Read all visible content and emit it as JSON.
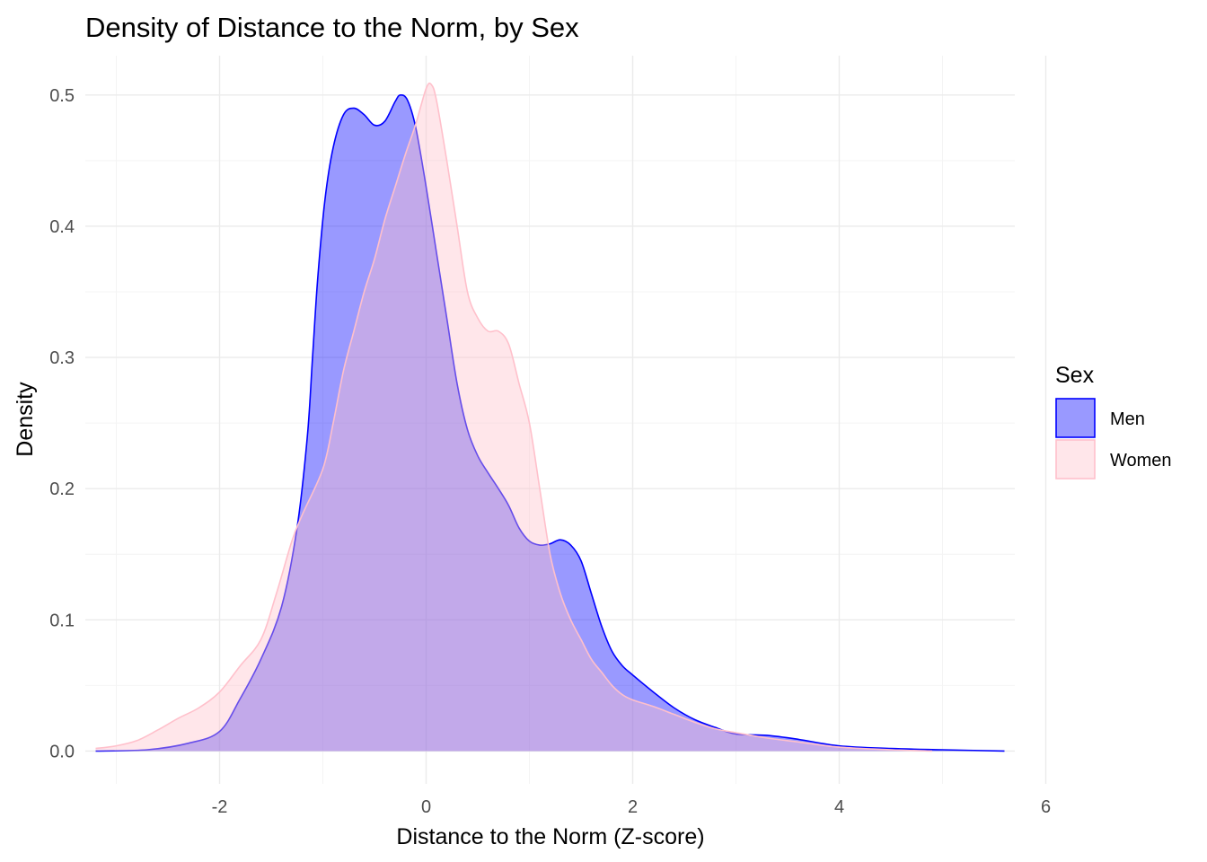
{
  "chart_data": {
    "type": "area",
    "title": "Density of Distance to the Norm, by Sex",
    "xlabel": "Distance to the Norm (Z-score)",
    "ylabel": "Density",
    "xlim": [
      -3.3,
      5.7
    ],
    "ylim": [
      -0.025,
      0.53
    ],
    "x_ticks": [
      -2,
      0,
      2,
      4,
      6
    ],
    "x_tick_labels": [
      "-2",
      "0",
      "2",
      "4",
      "6"
    ],
    "y_ticks": [
      0.0,
      0.1,
      0.2,
      0.3,
      0.4,
      0.5
    ],
    "y_tick_labels": [
      "0.0",
      "0.1",
      "0.2",
      "0.3",
      "0.4",
      "0.5"
    ],
    "grid": true,
    "legend": {
      "title": "Sex",
      "position": "right"
    },
    "series": [
      {
        "name": "Men",
        "line_color": "#0000ff",
        "fill_color": "#0000ff",
        "fill_opacity": 0.4,
        "points": [
          [
            -3.2,
            0.0
          ],
          [
            -2.7,
            0.001
          ],
          [
            -2.3,
            0.006
          ],
          [
            -2.0,
            0.015
          ],
          [
            -1.8,
            0.04
          ],
          [
            -1.6,
            0.07
          ],
          [
            -1.4,
            0.11
          ],
          [
            -1.25,
            0.17
          ],
          [
            -1.15,
            0.24
          ],
          [
            -1.1,
            0.3
          ],
          [
            -1.05,
            0.36
          ],
          [
            -0.98,
            0.42
          ],
          [
            -0.9,
            0.46
          ],
          [
            -0.8,
            0.485
          ],
          [
            -0.7,
            0.49
          ],
          [
            -0.6,
            0.485
          ],
          [
            -0.5,
            0.477
          ],
          [
            -0.4,
            0.48
          ],
          [
            -0.3,
            0.495
          ],
          [
            -0.25,
            0.5
          ],
          [
            -0.18,
            0.496
          ],
          [
            -0.1,
            0.475
          ],
          [
            0.0,
            0.43
          ],
          [
            0.1,
            0.38
          ],
          [
            0.2,
            0.33
          ],
          [
            0.3,
            0.28
          ],
          [
            0.4,
            0.245
          ],
          [
            0.5,
            0.225
          ],
          [
            0.6,
            0.212
          ],
          [
            0.7,
            0.2
          ],
          [
            0.8,
            0.187
          ],
          [
            0.9,
            0.17
          ],
          [
            1.0,
            0.16
          ],
          [
            1.1,
            0.157
          ],
          [
            1.2,
            0.158
          ],
          [
            1.3,
            0.161
          ],
          [
            1.4,
            0.157
          ],
          [
            1.5,
            0.145
          ],
          [
            1.6,
            0.12
          ],
          [
            1.7,
            0.095
          ],
          [
            1.8,
            0.076
          ],
          [
            1.9,
            0.065
          ],
          [
            2.0,
            0.058
          ],
          [
            2.2,
            0.045
          ],
          [
            2.4,
            0.033
          ],
          [
            2.6,
            0.024
          ],
          [
            2.8,
            0.018
          ],
          [
            3.0,
            0.013
          ],
          [
            3.3,
            0.012
          ],
          [
            3.6,
            0.009
          ],
          [
            4.0,
            0.004
          ],
          [
            4.5,
            0.002
          ],
          [
            5.0,
            0.001
          ],
          [
            5.6,
            0.0
          ]
        ]
      },
      {
        "name": "Women",
        "line_color": "#ffc0cb",
        "fill_color": "#ffc0cb",
        "fill_opacity": 0.4,
        "points": [
          [
            -3.2,
            0.002
          ],
          [
            -3.0,
            0.004
          ],
          [
            -2.8,
            0.008
          ],
          [
            -2.6,
            0.016
          ],
          [
            -2.4,
            0.025
          ],
          [
            -2.2,
            0.033
          ],
          [
            -2.0,
            0.045
          ],
          [
            -1.8,
            0.065
          ],
          [
            -1.6,
            0.085
          ],
          [
            -1.45,
            0.12
          ],
          [
            -1.3,
            0.16
          ],
          [
            -1.2,
            0.18
          ],
          [
            -1.0,
            0.215
          ],
          [
            -0.9,
            0.25
          ],
          [
            -0.8,
            0.29
          ],
          [
            -0.7,
            0.32
          ],
          [
            -0.6,
            0.35
          ],
          [
            -0.5,
            0.375
          ],
          [
            -0.4,
            0.405
          ],
          [
            -0.3,
            0.43
          ],
          [
            -0.2,
            0.455
          ],
          [
            -0.1,
            0.478
          ],
          [
            0.0,
            0.505
          ],
          [
            0.05,
            0.508
          ],
          [
            0.1,
            0.496
          ],
          [
            0.2,
            0.45
          ],
          [
            0.3,
            0.4
          ],
          [
            0.4,
            0.35
          ],
          [
            0.5,
            0.33
          ],
          [
            0.6,
            0.32
          ],
          [
            0.7,
            0.32
          ],
          [
            0.8,
            0.31
          ],
          [
            0.9,
            0.28
          ],
          [
            1.0,
            0.25
          ],
          [
            1.1,
            0.2
          ],
          [
            1.2,
            0.15
          ],
          [
            1.3,
            0.12
          ],
          [
            1.4,
            0.1
          ],
          [
            1.5,
            0.085
          ],
          [
            1.6,
            0.07
          ],
          [
            1.7,
            0.06
          ],
          [
            1.8,
            0.05
          ],
          [
            1.9,
            0.043
          ],
          [
            2.0,
            0.039
          ],
          [
            2.2,
            0.034
          ],
          [
            2.4,
            0.028
          ],
          [
            2.6,
            0.022
          ],
          [
            2.8,
            0.017
          ],
          [
            3.0,
            0.014
          ],
          [
            3.3,
            0.01
          ],
          [
            3.6,
            0.007
          ],
          [
            4.0,
            0.003
          ],
          [
            4.5,
            0.001
          ],
          [
            4.9,
            0.0
          ]
        ]
      }
    ]
  }
}
